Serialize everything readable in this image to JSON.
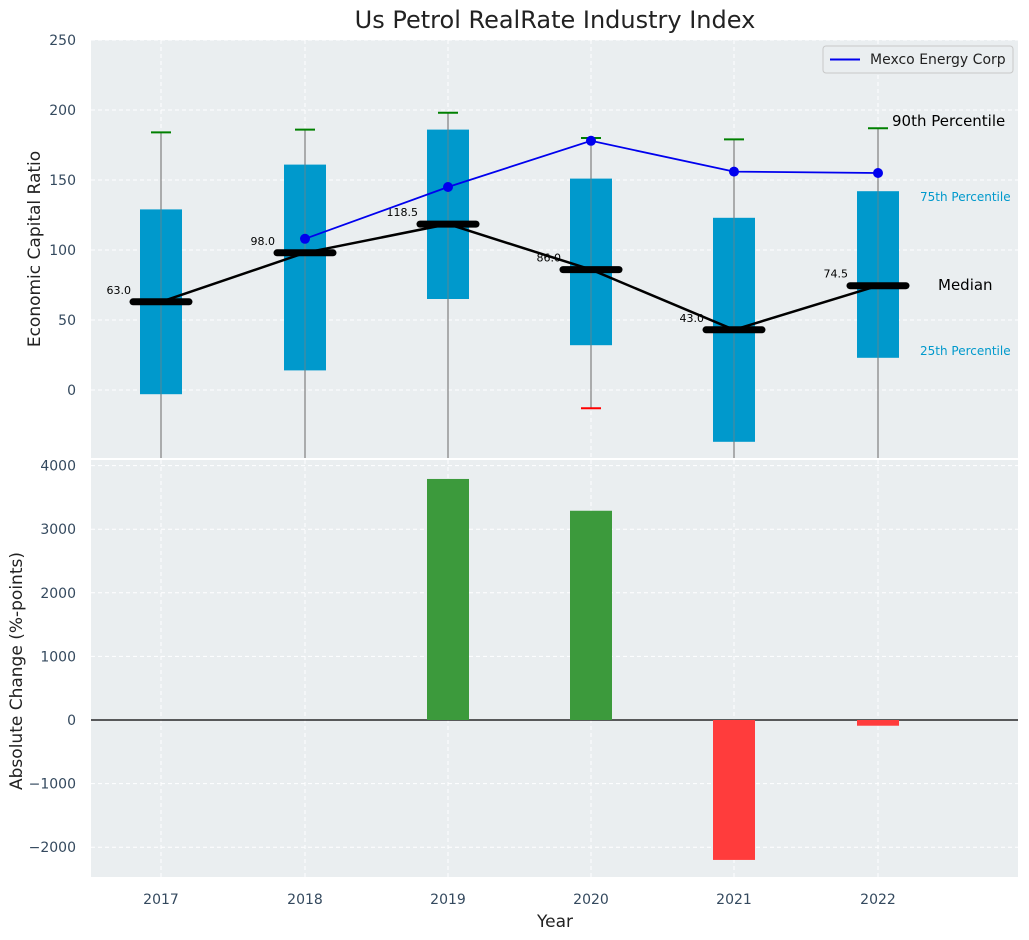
{
  "chart_data": [
    {
      "type": "box",
      "title": "Us Petrol RealRate Industry Index",
      "ylabel": "Economic Capital Ratio",
      "ylim": [
        -48,
        250
      ],
      "yticks": [
        0,
        50,
        100,
        150,
        200,
        250
      ],
      "categories": [
        "2017",
        "2018",
        "2019",
        "2020",
        "2021",
        "2022"
      ],
      "q1": [
        -3,
        14,
        65,
        32,
        -37,
        23
      ],
      "q3": [
        129,
        161,
        186,
        151,
        123,
        142
      ],
      "median": [
        63.0,
        98.0,
        118.5,
        86.0,
        43.0,
        74.5
      ],
      "median_labels": [
        "63.0",
        "98.0",
        "118.5",
        "86.0",
        "43.0",
        "74.5"
      ],
      "p90": [
        184,
        186,
        198,
        180,
        179,
        187
      ],
      "p10": [
        null,
        null,
        null,
        -13,
        null,
        null
      ],
      "series": [
        {
          "name": "Mexco Energy Corp",
          "values": [
            null,
            108,
            145,
            178,
            156,
            155
          ],
          "color": "#0000ee"
        }
      ],
      "annotations": {
        "p90": "90th Percentile",
        "q3": "75th Percentile",
        "median": "Median",
        "q1": "25th Percentile"
      },
      "legend": "top-right",
      "grid": true
    },
    {
      "type": "bar",
      "ylabel": "Absolute Change (%-points)",
      "xlabel": "Year",
      "ylim": [
        -2450,
        4100
      ],
      "yticks": [
        -2000,
        -1000,
        0,
        1000,
        2000,
        3000,
        4000
      ],
      "ytick_labels": [
        "−2000",
        "−1000",
        "0",
        "1000",
        "2000",
        "3000",
        "4000"
      ],
      "categories": [
        "2017",
        "2018",
        "2019",
        "2020",
        "2021",
        "2022"
      ],
      "values": [
        0,
        0,
        3790,
        3290,
        -2200,
        -90
      ],
      "grid": true
    }
  ],
  "colors": {
    "box": "#0099cc",
    "median": "#000000",
    "positive": "#3c9a3c",
    "negative": "#ff3c3c",
    "p90_cap": "#008000",
    "p10_cap": "#ff0000",
    "panel_bg": "#eaeef0",
    "whisker": "#7f7f7f"
  }
}
